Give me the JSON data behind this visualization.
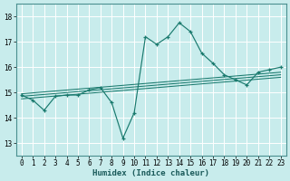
{
  "title": "",
  "xlabel": "Humidex (Indice chaleur)",
  "ylabel": "",
  "bg_color": "#c8ecec",
  "grid_color": "#ffffff",
  "line_color": "#1a7a6e",
  "xlim": [
    -0.5,
    23.5
  ],
  "ylim": [
    12.5,
    18.5
  ],
  "yticks": [
    13,
    14,
    15,
    16,
    17,
    18
  ],
  "xticks": [
    0,
    1,
    2,
    3,
    4,
    5,
    6,
    7,
    8,
    9,
    10,
    11,
    12,
    13,
    14,
    15,
    16,
    17,
    18,
    19,
    20,
    21,
    22,
    23
  ],
  "main_x": [
    0,
    1,
    2,
    3,
    4,
    5,
    6,
    7,
    8,
    9,
    10,
    11,
    12,
    13,
    14,
    15,
    16,
    17,
    18,
    19,
    20,
    21,
    22,
    23
  ],
  "main_y": [
    14.9,
    14.7,
    14.3,
    14.85,
    14.9,
    14.9,
    15.1,
    15.2,
    14.6,
    13.2,
    14.2,
    17.2,
    16.9,
    17.2,
    17.75,
    17.4,
    16.55,
    16.15,
    15.7,
    15.5,
    15.3,
    15.8,
    15.9,
    16.0
  ],
  "line1_x": [
    0,
    23
  ],
  "line1_y": [
    14.75,
    15.6
  ],
  "line2_x": [
    0,
    23
  ],
  "line2_y": [
    14.85,
    15.7
  ],
  "line3_x": [
    0,
    23
  ],
  "line3_y": [
    14.95,
    15.8
  ],
  "tick_fontsize": 5.5,
  "xlabel_fontsize": 6.5,
  "spine_color": "#4a9090"
}
